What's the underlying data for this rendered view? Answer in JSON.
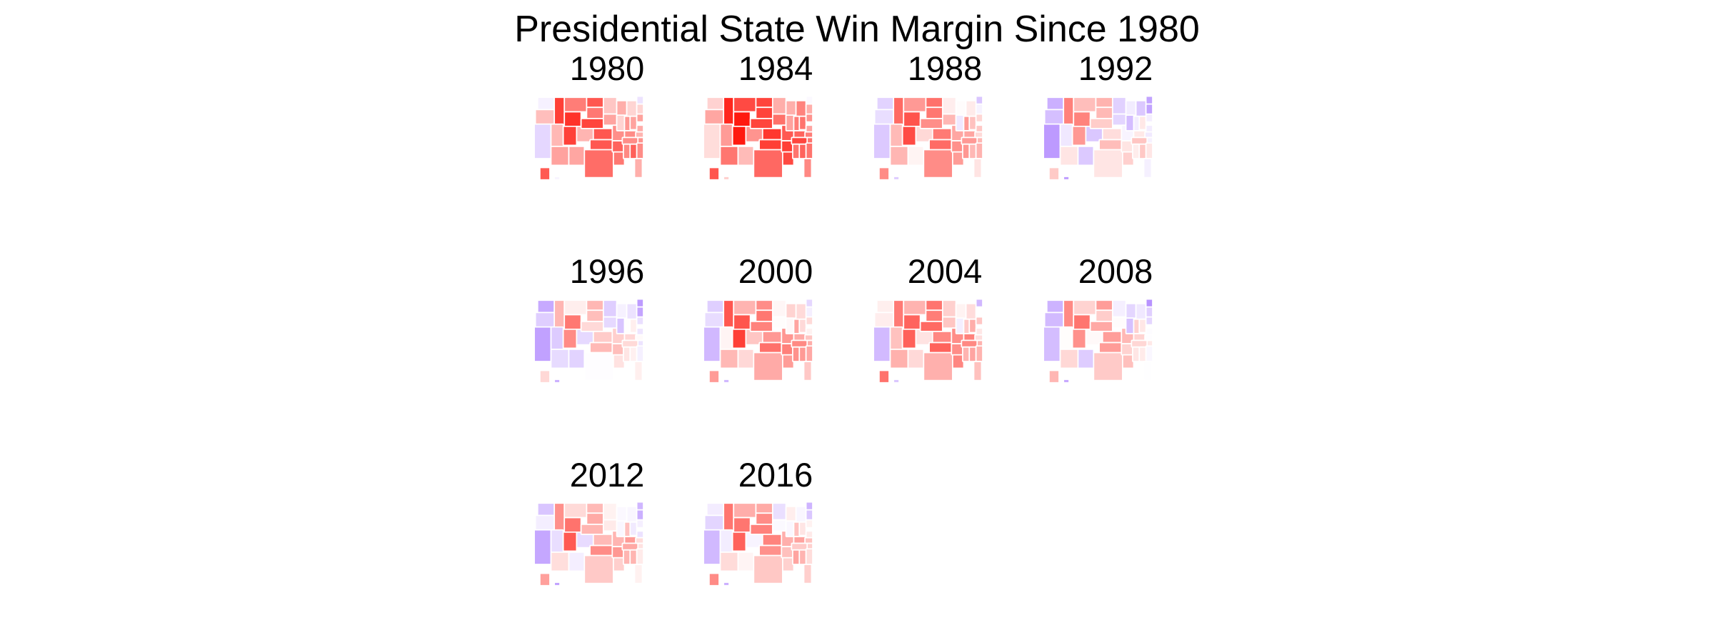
{
  "title": "Presidential State Win Margin Since 1980",
  "panels": [
    {
      "year": "1980",
      "lean": 0.3
    },
    {
      "year": "1984",
      "lean": 0.45
    },
    {
      "year": "1988",
      "lean": 0.15
    },
    {
      "year": "1992",
      "lean": -0.1
    },
    {
      "year": "1996",
      "lean": -0.12
    },
    {
      "year": "2000",
      "lean": 0.12
    },
    {
      "year": "2004",
      "lean": 0.15
    },
    {
      "year": "2008",
      "lean": -0.05
    },
    {
      "year": "2012",
      "lean": 0.0
    },
    {
      "year": "2016",
      "lean": 0.05
    }
  ],
  "colors": {
    "republican": "#ff1a10",
    "democrat": "#8a4dff",
    "neutral": "#ffffff",
    "state_border": "#ffffff"
  }
}
